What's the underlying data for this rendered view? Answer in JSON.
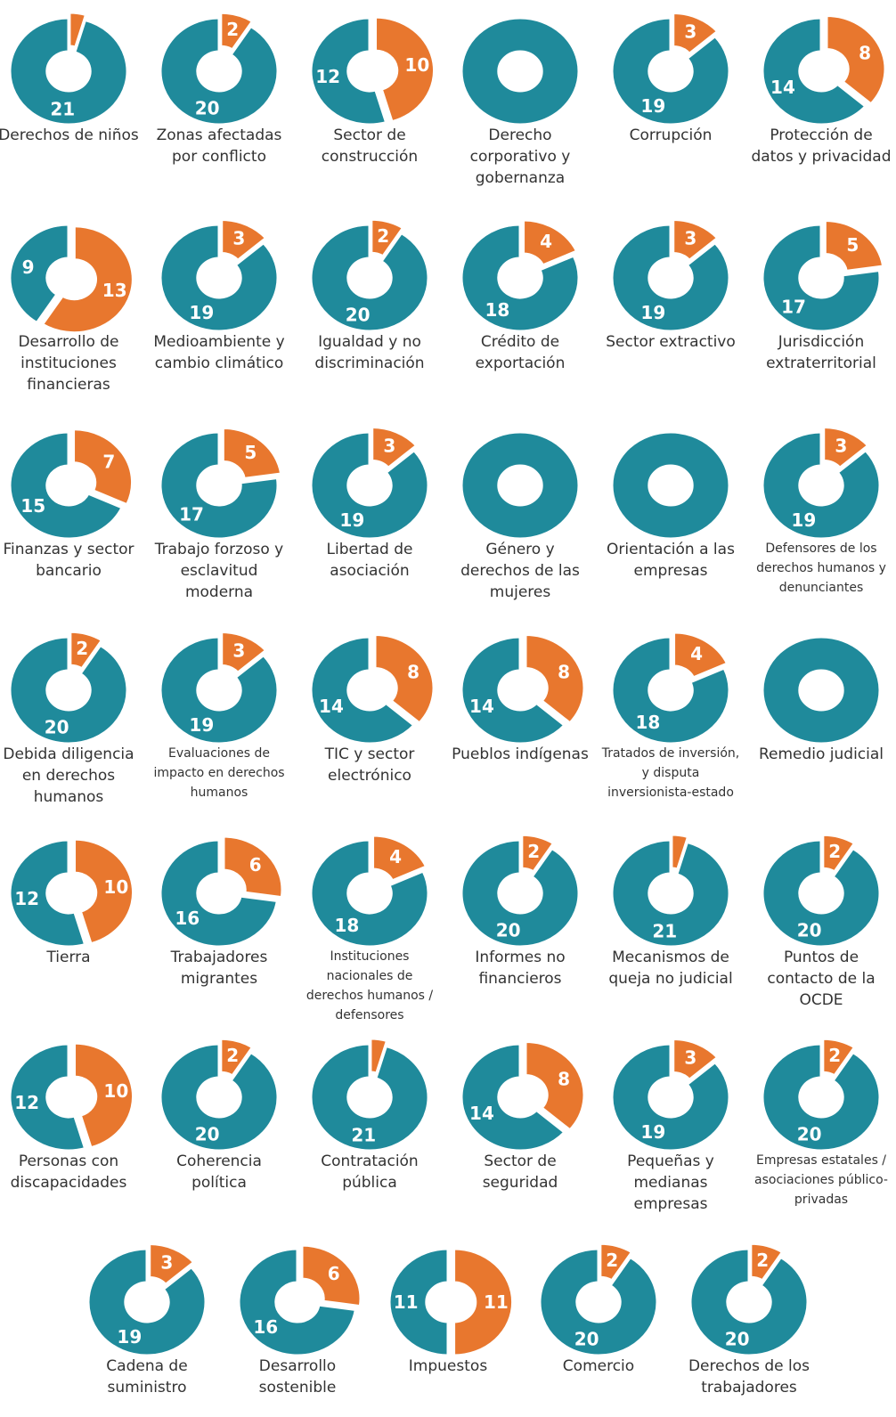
{
  "chart_data": [
    {
      "type": "donut",
      "title": "Derechos de niños",
      "values": [
        21,
        1
      ],
      "colors": [
        "#1f8a9b",
        "#e8772e"
      ]
    },
    {
      "type": "donut",
      "title": "Zonas afectadas por conflicto",
      "values": [
        20,
        2
      ],
      "colors": [
        "#1f8a9b",
        "#e8772e"
      ]
    },
    {
      "type": "donut",
      "title": "Sector de construcción",
      "values": [
        12,
        10
      ],
      "colors": [
        "#1f8a9b",
        "#e8772e"
      ]
    },
    {
      "type": "donut",
      "title": "Derecho corporativo y gobernanza",
      "values": [
        22,
        0
      ],
      "colors": [
        "#1f8a9b",
        "#e8772e"
      ]
    },
    {
      "type": "donut",
      "title": "Corrupción",
      "values": [
        19,
        3
      ],
      "colors": [
        "#1f8a9b",
        "#e8772e"
      ]
    },
    {
      "type": "donut",
      "title": "Protección de datos y privacidad",
      "values": [
        14,
        8
      ],
      "colors": [
        "#1f8a9b",
        "#e8772e"
      ]
    },
    {
      "type": "donut",
      "title": "Desarrollo de instituciones financieras",
      "values": [
        9,
        13
      ],
      "colors": [
        "#1f8a9b",
        "#e8772e"
      ]
    },
    {
      "type": "donut",
      "title": "Medioambiente y cambio climático",
      "values": [
        19,
        3
      ],
      "colors": [
        "#1f8a9b",
        "#e8772e"
      ]
    },
    {
      "type": "donut",
      "title": "Igualdad y no discriminación",
      "values": [
        20,
        2
      ],
      "colors": [
        "#1f8a9b",
        "#e8772e"
      ]
    },
    {
      "type": "donut",
      "title": "Crédito de exportación",
      "values": [
        18,
        4
      ],
      "colors": [
        "#1f8a9b",
        "#e8772e"
      ]
    },
    {
      "type": "donut",
      "title": "Sector extractivo",
      "values": [
        19,
        3
      ],
      "colors": [
        "#1f8a9b",
        "#e8772e"
      ]
    },
    {
      "type": "donut",
      "title": "Jurisdicción extraterritorial",
      "values": [
        17,
        5
      ],
      "colors": [
        "#1f8a9b",
        "#e8772e"
      ]
    },
    {
      "type": "donut",
      "title": "Finanzas y sector bancario",
      "values": [
        15,
        7
      ],
      "colors": [
        "#1f8a9b",
        "#e8772e"
      ]
    },
    {
      "type": "donut",
      "title": "Trabajo forzoso y esclavitud moderna",
      "values": [
        17,
        5
      ],
      "colors": [
        "#1f8a9b",
        "#e8772e"
      ]
    },
    {
      "type": "donut",
      "title": "Libertad de asociación",
      "values": [
        19,
        3
      ],
      "colors": [
        "#1f8a9b",
        "#e8772e"
      ]
    },
    {
      "type": "donut",
      "title": "Género y derechos de las mujeres",
      "values": [
        22,
        0
      ],
      "colors": [
        "#1f8a9b",
        "#e8772e"
      ]
    },
    {
      "type": "donut",
      "title": "Orientación a las empresas",
      "values": [
        22,
        0
      ],
      "colors": [
        "#1f8a9b",
        "#e8772e"
      ]
    },
    {
      "type": "donut",
      "title": "Defensores de los derechos humanos y denunciantes",
      "values": [
        19,
        3
      ],
      "colors": [
        "#1f8a9b",
        "#e8772e"
      ]
    },
    {
      "type": "donut",
      "title": "Debida diligencia en derechos humanos",
      "values": [
        20,
        2
      ],
      "colors": [
        "#1f8a9b",
        "#e8772e"
      ]
    },
    {
      "type": "donut",
      "title": "Evaluaciones de impacto en derechos humanos",
      "values": [
        19,
        3
      ],
      "colors": [
        "#1f8a9b",
        "#e8772e"
      ]
    },
    {
      "type": "donut",
      "title": "TIC y sector electrónico",
      "values": [
        14,
        8
      ],
      "colors": [
        "#1f8a9b",
        "#e8772e"
      ]
    },
    {
      "type": "donut",
      "title": "Pueblos indígenas",
      "values": [
        14,
        8
      ],
      "colors": [
        "#1f8a9b",
        "#e8772e"
      ]
    },
    {
      "type": "donut",
      "title": "Tratados de inversión, y disputa inversionista-estado",
      "values": [
        18,
        4
      ],
      "colors": [
        "#1f8a9b",
        "#e8772e"
      ]
    },
    {
      "type": "donut",
      "title": "Remedio judicial",
      "values": [
        22,
        0
      ],
      "colors": [
        "#1f8a9b",
        "#e8772e"
      ]
    },
    {
      "type": "donut",
      "title": "Tierra",
      "values": [
        12,
        10
      ],
      "colors": [
        "#1f8a9b",
        "#e8772e"
      ]
    },
    {
      "type": "donut",
      "title": "Trabajadores migrantes",
      "values": [
        16,
        6
      ],
      "colors": [
        "#1f8a9b",
        "#e8772e"
      ]
    },
    {
      "type": "donut",
      "title": "Instituciones nacionales de derechos humanos / defensores",
      "values": [
        18,
        4
      ],
      "colors": [
        "#1f8a9b",
        "#e8772e"
      ]
    },
    {
      "type": "donut",
      "title": "Informes no financieros",
      "values": [
        20,
        2
      ],
      "colors": [
        "#1f8a9b",
        "#e8772e"
      ]
    },
    {
      "type": "donut",
      "title": "Mecanismos de queja no judicial",
      "values": [
        21,
        1
      ],
      "colors": [
        "#1f8a9b",
        "#e8772e"
      ]
    },
    {
      "type": "donut",
      "title": "Puntos de contacto de la OCDE",
      "values": [
        20,
        2
      ],
      "colors": [
        "#1f8a9b",
        "#e8772e"
      ]
    },
    {
      "type": "donut",
      "title": "Personas con discapacidades",
      "values": [
        12,
        10
      ],
      "colors": [
        "#1f8a9b",
        "#e8772e"
      ]
    },
    {
      "type": "donut",
      "title": "Coherencia política",
      "values": [
        20,
        2
      ],
      "colors": [
        "#1f8a9b",
        "#e8772e"
      ]
    },
    {
      "type": "donut",
      "title": "Contratación pública",
      "values": [
        21,
        1
      ],
      "colors": [
        "#1f8a9b",
        "#e8772e"
      ]
    },
    {
      "type": "donut",
      "title": "Sector de seguridad",
      "values": [
        14,
        8
      ],
      "colors": [
        "#1f8a9b",
        "#e8772e"
      ]
    },
    {
      "type": "donut",
      "title": "Pequeñas y medianas empresas",
      "values": [
        19,
        3
      ],
      "colors": [
        "#1f8a9b",
        "#e8772e"
      ]
    },
    {
      "type": "donut",
      "title": "Empresas estatales / asociaciones público-privadas",
      "values": [
        20,
        2
      ],
      "colors": [
        "#1f8a9b",
        "#e8772e"
      ]
    },
    {
      "type": "donut",
      "title": "Cadena de suministro",
      "values": [
        19,
        3
      ],
      "colors": [
        "#1f8a9b",
        "#e8772e"
      ]
    },
    {
      "type": "donut",
      "title": "Desarrollo sostenible",
      "values": [
        16,
        6
      ],
      "colors": [
        "#1f8a9b",
        "#e8772e"
      ]
    },
    {
      "type": "donut",
      "title": "Impuestos",
      "values": [
        11,
        11
      ],
      "colors": [
        "#1f8a9b",
        "#e8772e"
      ]
    },
    {
      "type": "donut",
      "title": "Comercio",
      "values": [
        20,
        2
      ],
      "colors": [
        "#1f8a9b",
        "#e8772e"
      ]
    },
    {
      "type": "donut",
      "title": "Derechos de los trabajadores",
      "values": [
        20,
        2
      ],
      "colors": [
        "#1f8a9b",
        "#e8772e"
      ]
    }
  ]
}
